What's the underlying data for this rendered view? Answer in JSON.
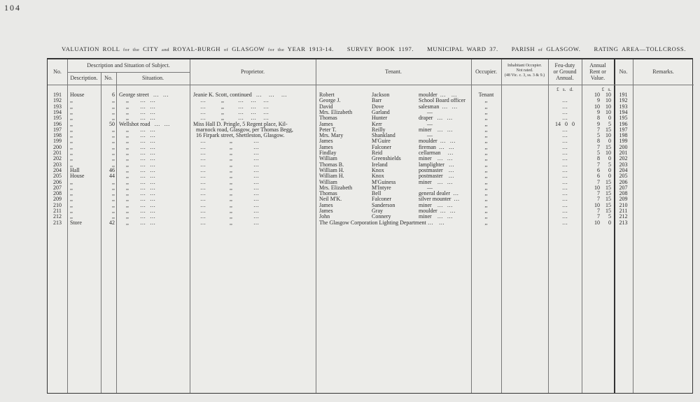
{
  "page_number": "104",
  "title": {
    "part1": "VALUATION ROLL",
    "for1": "for the",
    "part2": "CITY",
    "and": "and",
    "part3": "ROYAL-BURGH",
    "of1": "of",
    "part4": "GLASGOW",
    "for2": "for the",
    "part5": "YEAR 1913-14.",
    "survey": "SURVEY BOOK 1197.",
    "ward": "MUNICIPAL WARD 37.",
    "parish1": "PARISH",
    "of2": "of",
    "parish2": "GLASGOW.",
    "area": "RATING AREA—TOLLCROSS."
  },
  "headers": {
    "no": "No.",
    "desc_group": "Description and Situation of Subject.",
    "description": "Description.",
    "num": "No.",
    "situation": "Situation.",
    "proprietor": "Proprietor.",
    "tenant": "Tenant.",
    "occupier": "Occupier.",
    "inhabitant_1": "Inhabitant Occupier.",
    "inhabitant_2": "Not rated.",
    "inhabitant_3": "(48 Vic. c. 3, ss. 3 & 9.)",
    "feu_1": "Feu-duty",
    "feu_2": "or Ground",
    "feu_3": "Annual.",
    "rent_1": "Annual",
    "rent_2": "Rent or",
    "rent_3": "Value.",
    "no2": "No.",
    "remarks": "Remarks.",
    "feu_units": "£   s.   d.",
    "rent_units": "£   s."
  },
  "rows": [
    {
      "no": "191",
      "desc": "House",
      "num": "6",
      "sit": "George street   …   …",
      "prop": "Jeanie K. Scott, continued   …     …     …",
      "first": "Robert",
      "last": "Jackson",
      "occ": "moulder  …    …",
      "occupier": "Tenant",
      "feu": "",
      "rl": "10",
      "rs": "10",
      "no2": "191"
    },
    {
      "no": "192",
      "desc": ",,",
      "num": ",,",
      "sit": "     ,,        …   …",
      "prop": "     …           ,,          …     …     …",
      "first": "George J.",
      "last": "Barr",
      "occ": "School Board officer",
      "occupier": ",,",
      "feu": "…",
      "rl": "9",
      "rs": "10",
      "no2": "192"
    },
    {
      "no": "193",
      "desc": ",,",
      "num": ",,",
      "sit": "     ,,        …   …",
      "prop": "     …           ,,          …     …     …",
      "first": "David",
      "last": "Dove",
      "occ": "salesman  …   …",
      "occupier": ",,",
      "feu": "…",
      "rl": "10",
      "rs": "10",
      "no2": "193"
    },
    {
      "no": "194",
      "desc": ",,",
      "num": ",,",
      "sit": "     ,,        …   …",
      "prop": "     …           ,,          …     …     …",
      "first": "Mrs. Elizabeth",
      "last": "Garland",
      "occ": "      —",
      "occupier": ",,",
      "feu": "…",
      "rl": "9",
      "rs": "10",
      "no2": "194"
    },
    {
      "no": "195",
      "desc": ",,",
      "num": ",,",
      "sit": "     ,,        …   …",
      "prop": "     …           ,,          …     …     …",
      "first": "Thomas",
      "last": "Hunter",
      "occ": "draper   …   …",
      "occupier": ",,",
      "feu": "…",
      "rl": "8",
      "rs": "0",
      "no2": "195"
    },
    {
      "no": "196",
      "desc": ",,",
      "num": "50",
      "sit": "Wellshot road   …   …",
      "prop": "Miss Hall D. Pringle, 5 Regent place, Kil-",
      "first": "James",
      "last": "Kerr",
      "occ": "      —",
      "occupier": ",,",
      "feu": "14   0   0",
      "rl": "9",
      "rs": "5",
      "no2": "196"
    },
    {
      "no": "197",
      "desc": ",,",
      "num": ",,",
      "sit": "     ,,        …   …",
      "prop": "  marnock road, Glasgow, per Thomas Begg,",
      "first": "Peter T.",
      "last": "Reilly",
      "occ": "miner    …   …",
      "occupier": ",,",
      "feu": "…",
      "rl": "7",
      "rs": "15",
      "no2": "197"
    },
    {
      "no": "198",
      "desc": ",,",
      "num": ",,",
      "sit": "     ,,        …   …",
      "prop": "  16 Firpark street, Shettleston, Glasgow.",
      "first": "Mrs. Mary",
      "last": "Shankland",
      "occ": "      —",
      "occupier": ",,",
      "feu": "…",
      "rl": "5",
      "rs": "10",
      "no2": "198"
    },
    {
      "no": "199",
      "desc": ",,",
      "num": ",,",
      "sit": "     ,,        …   …",
      "prop": "     …                 ,,               …",
      "first": "James",
      "last": "M'Guire",
      "occ": "moulder  …   …",
      "occupier": ",,",
      "feu": "…",
      "rl": "8",
      "rs": "0",
      "no2": "199"
    },
    {
      "no": "200",
      "desc": ",,",
      "num": ",,",
      "sit": "     ,,        …   …",
      "prop": "     …                 ,,               …",
      "first": "James",
      "last": "Falconer",
      "occ": "fireman  …   …",
      "occupier": ",,",
      "feu": "…",
      "rl": "7",
      "rs": "15",
      "no2": "200"
    },
    {
      "no": "201",
      "desc": ",,",
      "num": ",,",
      "sit": "     ,,        …   …",
      "prop": "     …                 ,,               …",
      "first": "Findlay",
      "last": "Reid",
      "occ": "cellarman     …",
      "occupier": ",,",
      "feu": "…",
      "rl": "5",
      "rs": "10",
      "no2": "201"
    },
    {
      "no": "202",
      "desc": ",,",
      "num": ",,",
      "sit": "     ,,        …   …",
      "prop": "     …                 ,,               …",
      "first": "William",
      "last": "Greenshields",
      "occ": "miner    …   …",
      "occupier": ",,",
      "feu": "…",
      "rl": "8",
      "rs": "0",
      "no2": "202"
    },
    {
      "no": "203",
      "desc": ",,",
      "num": ",,",
      "sit": "     ,,        …   …",
      "prop": "     …                 ,,               …",
      "first": "Thomas B.",
      "last": "Ireland",
      "occ": "lamplighter   …",
      "occupier": ",,",
      "feu": "…",
      "rl": "7",
      "rs": "5",
      "no2": "203"
    },
    {
      "no": "204",
      "desc": "Hall",
      "num": "46",
      "sit": "     ,,        …   …",
      "prop": "     …                 ,,               …",
      "first": "William H.",
      "last": "Knox",
      "occ": "postmaster    …",
      "occupier": ",,",
      "feu": "…",
      "rl": "6",
      "rs": "0",
      "no2": "204"
    },
    {
      "no": "205",
      "desc": "House",
      "num": "44",
      "sit": "     ,,        …   …",
      "prop": "     …                 ,,               …",
      "first": "William H.",
      "last": "Knox",
      "occ": "postmaster    …",
      "occupier": ",,",
      "feu": "…",
      "rl": "6",
      "rs": "0",
      "no2": "205"
    },
    {
      "no": "206",
      "desc": ",,",
      "num": ",,",
      "sit": "     ,,        …   …",
      "prop": "     …                 ,,               …",
      "first": "William",
      "last": "M'Guiness",
      "occ": "miner    …   …",
      "occupier": ",,",
      "feu": "…",
      "rl": "7",
      "rs": "15",
      "no2": "206"
    },
    {
      "no": "207",
      "desc": ",,",
      "num": ",,",
      "sit": "     ,,        …   …",
      "prop": "     …                 ,,               …",
      "first": "Mrs. Elizabeth",
      "last": "M'Intyre",
      "occ": "      —",
      "occupier": ",,",
      "feu": "…",
      "rl": "10",
      "rs": "15",
      "no2": "207"
    },
    {
      "no": "208",
      "desc": ",,",
      "num": ",,",
      "sit": "     ,,        …   …",
      "prop": "     …                 ,,               …",
      "first": "Thomas",
      "last": "Bell",
      "occ": "general dealer  …",
      "occupier": ",,",
      "feu": "…",
      "rl": "7",
      "rs": "15",
      "no2": "208"
    },
    {
      "no": "209",
      "desc": ",,",
      "num": ",,",
      "sit": "     ,,        …   …",
      "prop": "     …                 ,,               …",
      "first": "Neil M'K.",
      "last": "Falconer",
      "occ": "silver mounter  …",
      "occupier": ",,",
      "feu": "…",
      "rl": "7",
      "rs": "15",
      "no2": "209"
    },
    {
      "no": "210",
      "desc": ",,",
      "num": ",,",
      "sit": "     ,,        …   …",
      "prop": "     …                 ,,               …",
      "first": "James",
      "last": "Sanderson",
      "occ": "miner    …   …",
      "occupier": ",,",
      "feu": "…",
      "rl": "10",
      "rs": "15",
      "no2": "210"
    },
    {
      "no": "211",
      "desc": ",,",
      "num": ",,",
      "sit": "     ,,        …   …",
      "prop": "     …                 ,,               …",
      "first": "James",
      "last": "Gray",
      "occ": "moulder  …   …",
      "occupier": ",,",
      "feu": "…",
      "rl": "7",
      "rs": "15",
      "no2": "211"
    },
    {
      "no": "212",
      "desc": ",,",
      "num": ",,",
      "sit": "     ,,        …   …",
      "prop": "     …                 ,,               …",
      "first": "John",
      "last": "Connery",
      "occ": "miner    …   …",
      "occupier": ",,",
      "feu": "…",
      "rl": "7",
      "rs": "5",
      "no2": "212"
    },
    {
      "no": "213",
      "desc": "Store",
      "num": "42",
      "sit": "     ,,        …   …",
      "prop": "     …                 ,,               …",
      "first": "The Glasgow Corporation Lighting Department …    …",
      "last": "",
      "occ": "",
      "occupier": ",,",
      "feu": "…",
      "rl": "10",
      "rs": "0",
      "no2": "213"
    }
  ]
}
